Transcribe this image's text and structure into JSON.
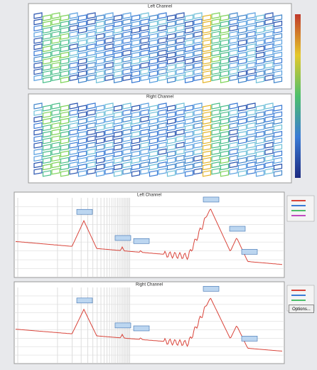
{
  "waterfall": {
    "left_title": "Left Channel",
    "right_title": "Right Channel"
  },
  "spectrum": {
    "left_title": "Left Channel",
    "right_title": "Right Channel",
    "button": "Options..."
  }
}
